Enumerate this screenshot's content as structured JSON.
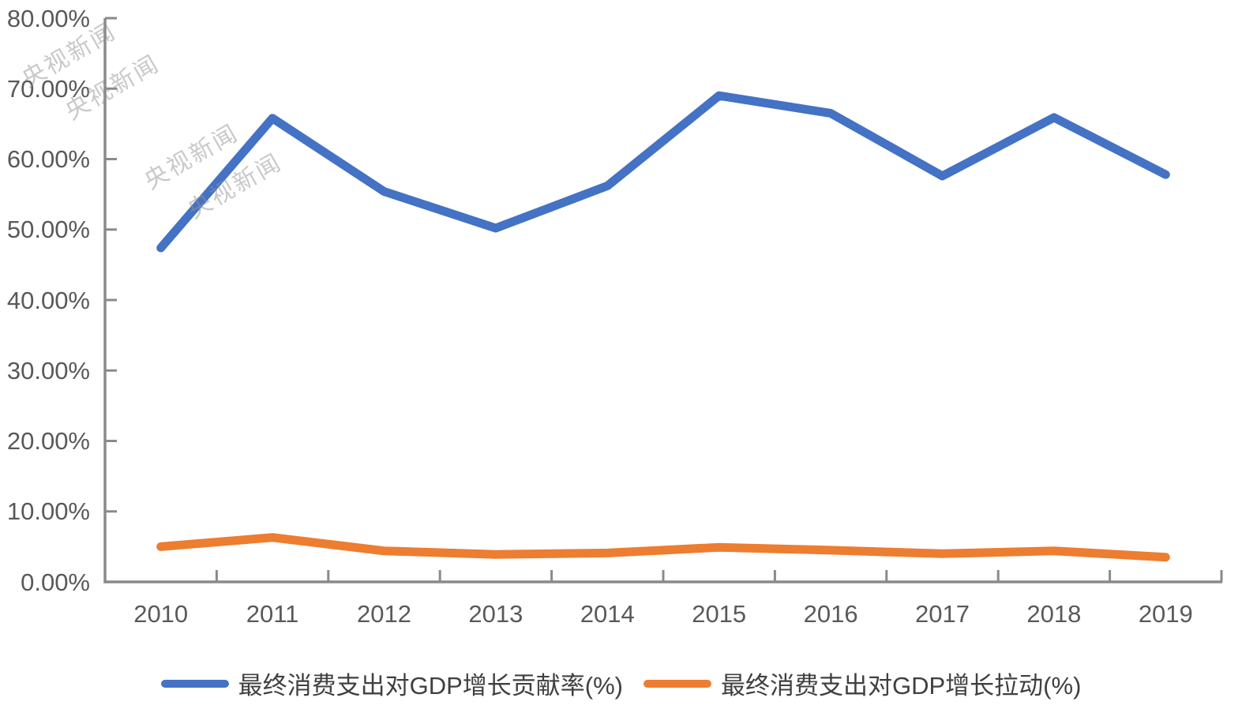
{
  "watermark": {
    "text": "央视新闻"
  },
  "chart_data": {
    "type": "line",
    "title": "",
    "xlabel": "",
    "ylabel": "",
    "categories": [
      "2010",
      "2011",
      "2012",
      "2013",
      "2014",
      "2015",
      "2016",
      "2017",
      "2018",
      "2019"
    ],
    "series": [
      {
        "name": "最终消费支出对GDP增长贡献率(%)",
        "color": "#4472C4",
        "values": [
          47.4,
          65.8,
          55.4,
          50.2,
          56.2,
          69.0,
          66.5,
          57.6,
          65.9,
          57.8
        ]
      },
      {
        "name": "最终消费支出对GDP增长拉动(%)",
        "color": "#ED7D31",
        "values": [
          5.0,
          6.3,
          4.4,
          3.9,
          4.1,
          4.9,
          4.5,
          4.0,
          4.4,
          3.5
        ]
      }
    ],
    "ylim": [
      0,
      80
    ],
    "y_tick_step": 10,
    "y_tick_labels": [
      "0.00%",
      "10.00%",
      "20.00%",
      "30.00%",
      "40.00%",
      "50.00%",
      "60.00%",
      "70.00%",
      "80.00%"
    ],
    "grid": false,
    "legend_position": "bottom",
    "axis_color": "#8a8a8a"
  }
}
